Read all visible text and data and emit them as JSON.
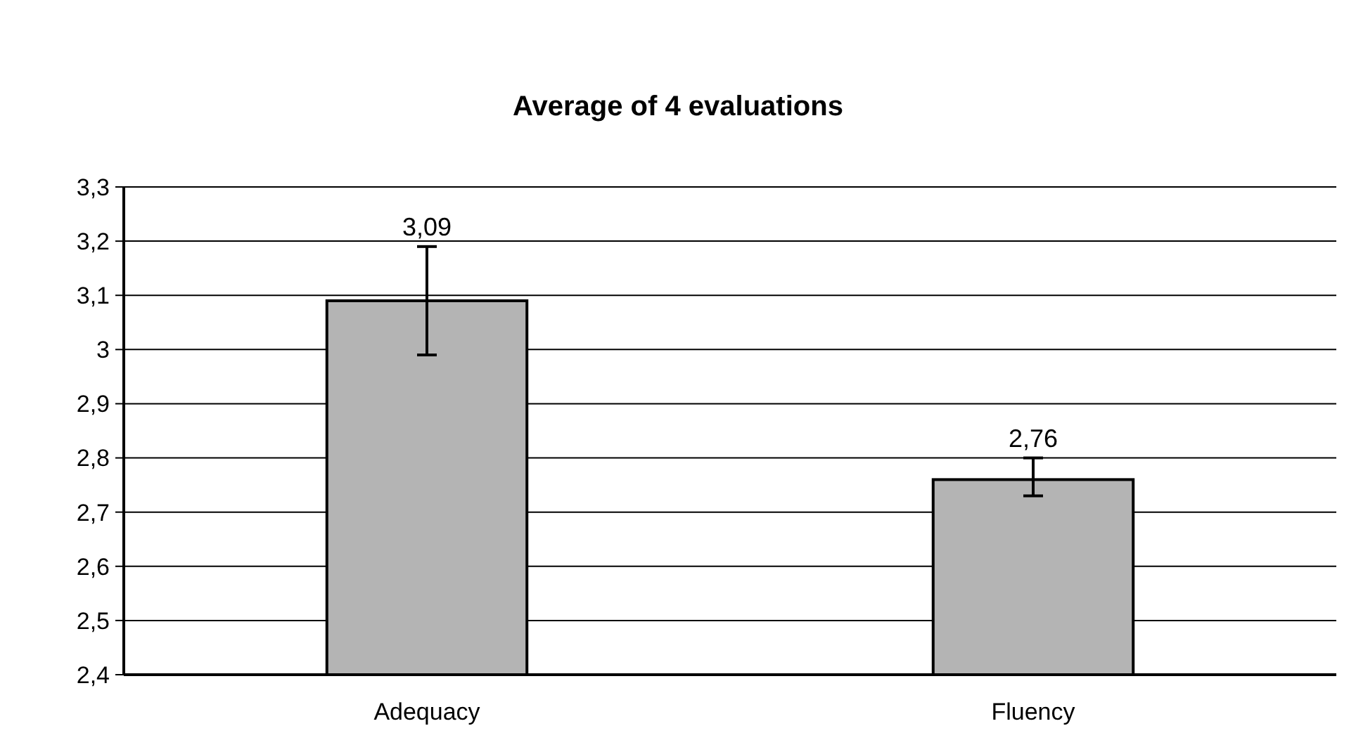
{
  "chart_data": {
    "type": "bar",
    "title": "Average of 4 evaluations",
    "categories": [
      "Adequacy",
      "Fluency"
    ],
    "values": [
      3.09,
      2.76
    ],
    "color": "#b4b4b4",
    "errors": [
      0.1,
      [
        2.73,
        2.8
      ]
    ],
    "value_labels": [
      "3,09",
      "2,76"
    ],
    "ylim": [
      2.4,
      3.3
    ],
    "yticks": [
      {
        "value": 2.4,
        "label": "2,4"
      },
      {
        "value": 2.5,
        "label": "2,5"
      },
      {
        "value": 2.6,
        "label": "2,6"
      },
      {
        "value": 2.7,
        "label": "2,7"
      },
      {
        "value": 2.8,
        "label": "2,8"
      },
      {
        "value": 2.9,
        "label": "2,9"
      },
      3,
      {
        "value": 3.1,
        "label": "3,1"
      },
      {
        "value": 3.2,
        "label": "3,2"
      },
      {
        "value": 3.3,
        "label": "3,3"
      }
    ],
    "grid": "y"
  }
}
